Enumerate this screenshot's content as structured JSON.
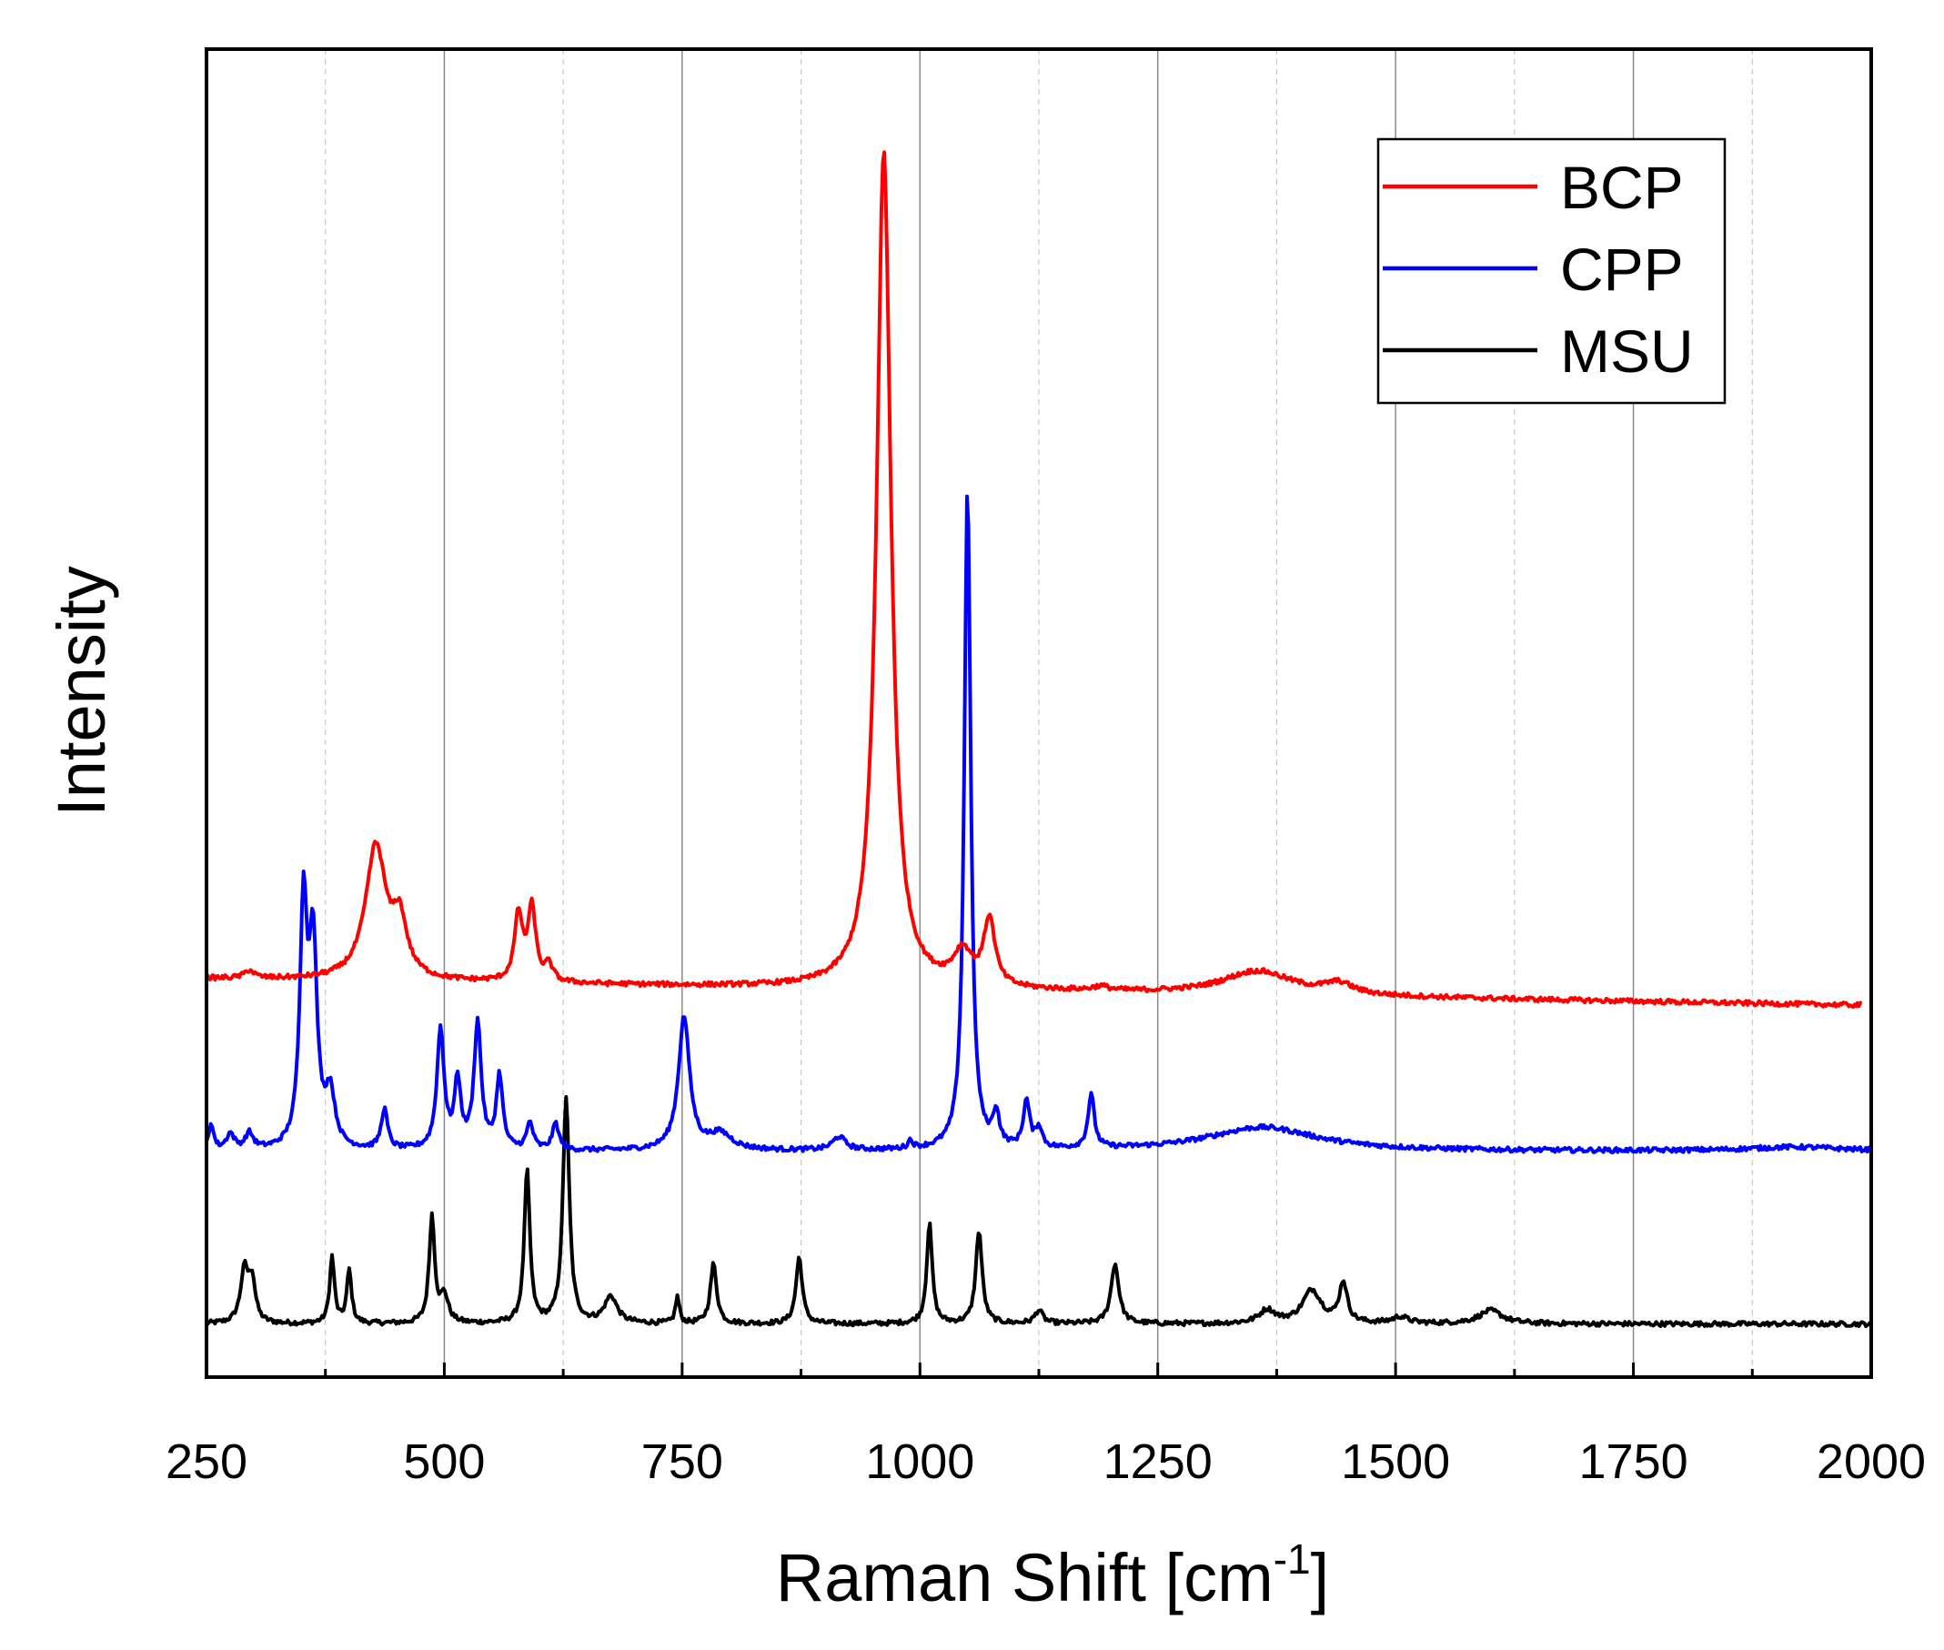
{
  "chart_data": {
    "type": "line",
    "title": "",
    "xlabel": "Raman Shift [cm",
    "xlabel_sup": "-1",
    "xlabel_end": "]",
    "ylabel": "Intensity",
    "xlim": [
      250,
      2000
    ],
    "ylim": [
      0,
      100
    ],
    "x_ticks": [
      250,
      500,
      750,
      1000,
      1250,
      1500,
      1750,
      2000
    ],
    "x_tick_labels": [
      "250",
      "500",
      "750",
      "1000",
      "1250",
      "1500",
      "1750",
      "2000"
    ],
    "x_minor_gridlines": [
      375,
      625,
      875,
      1125,
      1375,
      1625,
      1875
    ],
    "y_ticks_shown": false,
    "grid": "vertical",
    "legend_position": "top-right",
    "series": [
      {
        "name": "MSU",
        "color": "#000000",
        "baseline": 4,
        "x_end": 2000,
        "peaks": [
          {
            "x": 290,
            "h": 4,
            "w": 5
          },
          {
            "x": 298,
            "h": 3,
            "w": 4
          },
          {
            "x": 382,
            "h": 5,
            "w": 3
          },
          {
            "x": 400,
            "h": 4,
            "w": 3
          },
          {
            "x": 487,
            "h": 8,
            "w": 3.5
          },
          {
            "x": 500,
            "h": 2,
            "w": 5
          },
          {
            "x": 587,
            "h": 11.5,
            "w": 3.5
          },
          {
            "x": 628,
            "h": 17,
            "w": 4
          },
          {
            "x": 675,
            "h": 2,
            "w": 8
          },
          {
            "x": 745,
            "h": 2,
            "w": 2.5
          },
          {
            "x": 783,
            "h": 4.5,
            "w": 4
          },
          {
            "x": 873,
            "h": 5,
            "w": 4
          },
          {
            "x": 1010,
            "h": 7.5,
            "w": 3.5
          },
          {
            "x": 1062,
            "h": 7,
            "w": 4
          },
          {
            "x": 1125,
            "h": 1,
            "w": 5
          },
          {
            "x": 1205,
            "h": 4.5,
            "w": 5
          },
          {
            "x": 1365,
            "h": 1,
            "w": 10
          },
          {
            "x": 1412,
            "h": 2.5,
            "w": 12
          },
          {
            "x": 1445,
            "h": 3,
            "w": 5
          },
          {
            "x": 1505,
            "h": 0.5,
            "w": 10
          },
          {
            "x": 1600,
            "h": 1,
            "w": 15
          }
        ]
      },
      {
        "name": "CPP",
        "color": "#0000ff",
        "baseline": 17,
        "x_end": 2000,
        "peaks": [
          {
            "x": 255,
            "h": 2,
            "w": 3
          },
          {
            "x": 275,
            "h": 1.2,
            "w": 5
          },
          {
            "x": 295,
            "h": 1.2,
            "w": 5
          },
          {
            "x": 352,
            "h": 18,
            "w": 4.5
          },
          {
            "x": 362,
            "h": 15,
            "w": 5
          },
          {
            "x": 380,
            "h": 4,
            "w": 6
          },
          {
            "x": 437,
            "h": 3,
            "w": 4
          },
          {
            "x": 496,
            "h": 9,
            "w": 4.5
          },
          {
            "x": 514,
            "h": 5,
            "w": 4
          },
          {
            "x": 535,
            "h": 9.5,
            "w": 4.5
          },
          {
            "x": 558,
            "h": 5.5,
            "w": 4
          },
          {
            "x": 590,
            "h": 2,
            "w": 4
          },
          {
            "x": 617,
            "h": 2,
            "w": 4
          },
          {
            "x": 752,
            "h": 10,
            "w": 7
          },
          {
            "x": 790,
            "h": 1.2,
            "w": 15
          },
          {
            "x": 915,
            "h": 1,
            "w": 8
          },
          {
            "x": 990,
            "h": 0.6,
            "w": 3
          },
          {
            "x": 1050,
            "h": 50,
            "w": 4
          },
          {
            "x": 1080,
            "h": 2.5,
            "w": 4
          },
          {
            "x": 1112,
            "h": 3.5,
            "w": 4
          },
          {
            "x": 1125,
            "h": 1.5,
            "w": 4
          },
          {
            "x": 1180,
            "h": 4,
            "w": 4
          },
          {
            "x": 1360,
            "h": 1.8,
            "w": 70
          },
          {
            "x": 1920,
            "h": 0.3,
            "w": 60
          }
        ]
      },
      {
        "name": "BCP",
        "color": "#ff0000",
        "baseline": 30,
        "x_end": 1990,
        "slope_end": -2,
        "peaks": [
          {
            "x": 295,
            "h": 0.6,
            "w": 6
          },
          {
            "x": 428,
            "h": 10,
            "w": 13
          },
          {
            "x": 453,
            "h": 4,
            "w": 9
          },
          {
            "x": 578,
            "h": 5,
            "w": 5
          },
          {
            "x": 592,
            "h": 5.5,
            "w": 5
          },
          {
            "x": 610,
            "h": 1.2,
            "w": 5
          },
          {
            "x": 962,
            "h": 63,
            "w": 9
          },
          {
            "x": 1045,
            "h": 2.5,
            "w": 12
          },
          {
            "x": 1073,
            "h": 5,
            "w": 7
          },
          {
            "x": 1190,
            "h": 0.3,
            "w": 10
          },
          {
            "x": 1355,
            "h": 1.8,
            "w": 45
          },
          {
            "x": 1440,
            "h": 0.8,
            "w": 18
          }
        ]
      }
    ]
  }
}
